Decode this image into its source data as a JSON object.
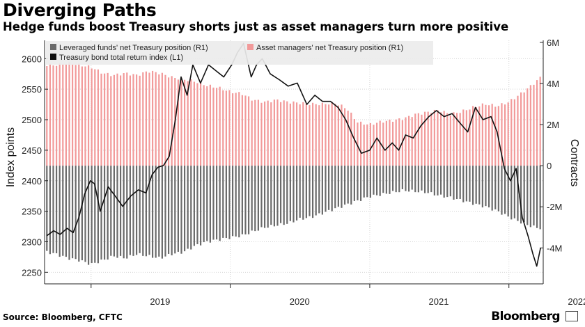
{
  "title": "Diverging Paths",
  "subtitle": "Hedge funds boost Treasury shorts just as asset managers turn more positive",
  "source": "Source: Bloomberg, CFTC",
  "brand": "Bloomberg",
  "colors": {
    "leveraged": "#6a6a6a",
    "asset_managers": "#f29a9a",
    "index_line": "#111111",
    "legend_bg": "#ececec",
    "grid": "#d4d4d4"
  },
  "chart_data": {
    "type": "bar",
    "title": "Diverging Paths",
    "subtitle": "Hedge funds boost Treasury shorts just as asset managers turn more positive",
    "legend": [
      "Leveraged funds' net Treasury position (R1)",
      "Asset managers' net Treasury position (R1)",
      "Treasury bond total return index (L1)"
    ],
    "legend_position": "top-left",
    "grid": true,
    "ylabel_left": "Index points",
    "ylabel_right": "Contracts",
    "yticks_left": [
      "2250",
      "2300",
      "2350",
      "2400",
      "2450",
      "2500",
      "2550",
      "2600"
    ],
    "ylim_left": [
      2231,
      2630
    ],
    "yticks_right": [
      "-4M",
      "-2M",
      "0",
      "2M",
      "4M",
      "6M"
    ],
    "ylim_right": [
      -5.75,
      6.1
    ],
    "xticks": [
      "2019",
      "2020",
      "2021",
      "2022"
    ],
    "x_range": [
      "2018-09-01",
      "2022-04-01"
    ],
    "bar_dates": [
      "2018-09-07",
      "2018-10-01",
      "2018-11-01",
      "2018-12-01",
      "2019-01-01",
      "2019-02-01",
      "2019-03-01",
      "2019-04-01",
      "2019-05-01",
      "2019-06-01",
      "2019-07-01",
      "2019-08-01",
      "2019-09-01",
      "2019-10-01",
      "2019-11-01",
      "2019-12-01",
      "2020-01-01",
      "2020-02-01",
      "2020-03-01",
      "2020-04-01",
      "2020-05-01",
      "2020-06-01",
      "2020-07-01",
      "2020-08-01",
      "2020-09-01",
      "2020-10-01",
      "2020-11-01",
      "2020-12-01",
      "2021-01-01",
      "2021-02-01",
      "2021-03-01",
      "2021-04-01",
      "2021-05-01",
      "2021-06-01",
      "2021-07-01",
      "2021-08-01",
      "2021-09-01",
      "2021-10-01",
      "2021-11-01",
      "2021-12-01",
      "2022-01-01",
      "2022-02-01",
      "2022-03-01",
      "2022-03-25"
    ],
    "series": [
      {
        "name": "Leveraged funds' net Treasury position (R1)",
        "type": "bar",
        "axis": "right",
        "unit": "M contracts",
        "values": [
          -4.2,
          -4.3,
          -4.5,
          -4.6,
          -4.8,
          -4.6,
          -4.4,
          -4.5,
          -4.3,
          -4.4,
          -4.5,
          -4.3,
          -4.2,
          -3.9,
          -3.7,
          -3.6,
          -3.5,
          -3.4,
          -3.2,
          -3.0,
          -2.9,
          -2.8,
          -2.6,
          -2.5,
          -2.3,
          -2.1,
          -1.9,
          -1.7,
          -1.5,
          -1.4,
          -1.3,
          -1.2,
          -1.25,
          -1.3,
          -1.45,
          -1.55,
          -1.7,
          -1.85,
          -2.0,
          -2.2,
          -2.5,
          -2.75,
          -2.95,
          -3.05
        ]
      },
      {
        "name": "Asset managers' net Treasury position (R1)",
        "type": "bar",
        "axis": "right",
        "unit": "M contracts",
        "values": [
          4.9,
          4.9,
          5.0,
          4.9,
          4.8,
          4.5,
          4.4,
          4.5,
          4.4,
          4.6,
          4.5,
          4.3,
          4.2,
          4.1,
          3.9,
          3.8,
          3.6,
          3.5,
          3.2,
          3.1,
          3.2,
          3.1,
          3.05,
          3.0,
          3.0,
          3.05,
          2.8,
          2.1,
          2.0,
          2.15,
          2.2,
          2.3,
          2.5,
          2.6,
          2.7,
          2.5,
          2.65,
          2.85,
          3.0,
          2.9,
          3.1,
          3.5,
          3.9,
          4.3
        ]
      },
      {
        "name": "Treasury bond total return index (L1)",
        "type": "line",
        "axis": "left",
        "unit": "Index points",
        "x": [
          "2018-09-07",
          "2018-09-25",
          "2018-10-12",
          "2018-10-30",
          "2018-11-15",
          "2018-11-30",
          "2018-12-15",
          "2018-12-30",
          "2019-01-10",
          "2019-01-25",
          "2019-02-15",
          "2019-03-05",
          "2019-03-25",
          "2019-04-15",
          "2019-05-05",
          "2019-05-25",
          "2019-06-10",
          "2019-06-25",
          "2019-07-10",
          "2019-07-25",
          "2019-08-10",
          "2019-08-25",
          "2019-09-10",
          "2019-09-25",
          "2019-10-15",
          "2019-11-05",
          "2019-11-25",
          "2019-12-15",
          "2020-01-05",
          "2020-01-20",
          "2020-02-05",
          "2020-02-25",
          "2020-03-10",
          "2020-03-25",
          "2020-04-15",
          "2020-05-10",
          "2020-06-01",
          "2020-06-25",
          "2020-07-20",
          "2020-08-10",
          "2020-08-30",
          "2020-09-20",
          "2020-10-10",
          "2020-10-30",
          "2020-11-20",
          "2020-12-10",
          "2021-01-01",
          "2021-01-20",
          "2021-02-10",
          "2021-03-01",
          "2021-03-18",
          "2021-04-05",
          "2021-04-25",
          "2021-05-15",
          "2021-06-05",
          "2021-06-25",
          "2021-07-15",
          "2021-08-05",
          "2021-08-25",
          "2021-09-15",
          "2021-10-05",
          "2021-10-25",
          "2021-11-15",
          "2021-12-01",
          "2021-12-20",
          "2022-01-05",
          "2022-01-20",
          "2022-02-05",
          "2022-02-20",
          "2022-03-05",
          "2022-03-15",
          "2022-03-25"
        ],
        "values": [
          2310,
          2318,
          2312,
          2322,
          2315,
          2340,
          2378,
          2400,
          2395,
          2350,
          2390,
          2375,
          2358,
          2375,
          2385,
          2380,
          2410,
          2422,
          2425,
          2440,
          2500,
          2570,
          2540,
          2590,
          2560,
          2590,
          2580,
          2570,
          2590,
          2610,
          2625,
          2570,
          2590,
          2600,
          2575,
          2565,
          2555,
          2560,
          2525,
          2540,
          2530,
          2530,
          2520,
          2500,
          2470,
          2445,
          2450,
          2470,
          2450,
          2462,
          2450,
          2475,
          2470,
          2490,
          2505,
          2515,
          2505,
          2510,
          2495,
          2480,
          2520,
          2500,
          2505,
          2480,
          2420,
          2400,
          2420,
          2340,
          2310,
          2280,
          2260,
          2290
        ]
      }
    ]
  }
}
